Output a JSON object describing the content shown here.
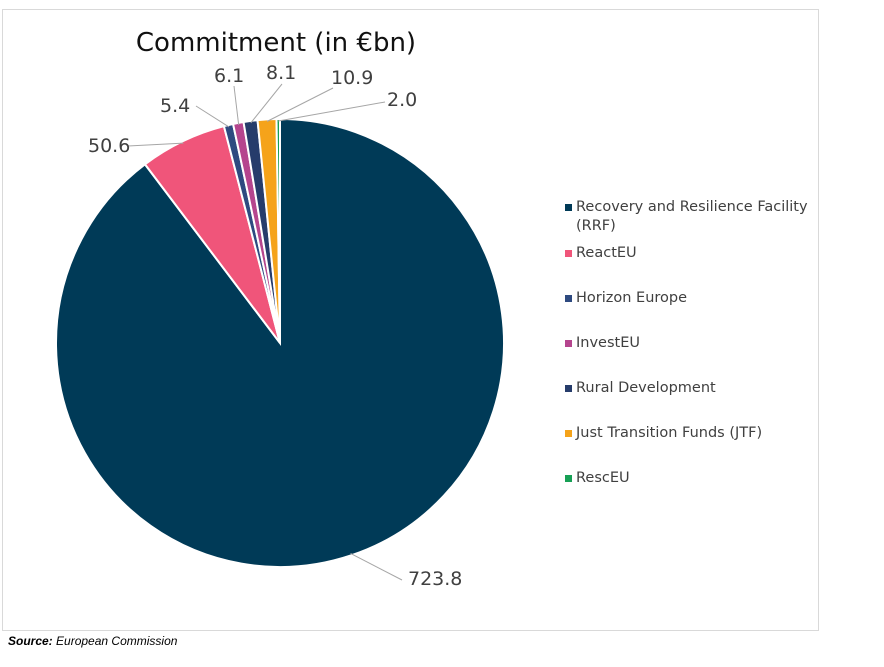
{
  "chart_data": {
    "type": "pie",
    "title": "Commitment (in €bn)",
    "slices": [
      {
        "label": "Recovery and Resilience Facility (RRF)",
        "value": 723.8,
        "value_label": "723.8",
        "color": "#003a57"
      },
      {
        "label": "ReactEU",
        "value": 50.6,
        "value_label": "50.6",
        "color": "#f0557a"
      },
      {
        "label": "Horizon Europe",
        "value": 5.4,
        "value_label": "5.4",
        "color": "#2e4a80"
      },
      {
        "label": "InvestEU",
        "value": 6.1,
        "value_label": "6.1",
        "color": "#b5458e"
      },
      {
        "label": "Rural Development",
        "value": 8.1,
        "value_label": "8.1",
        "color": "#263c6b"
      },
      {
        "label": "Just Transition Funds (JTF)",
        "value": 10.9,
        "value_label": "10.9",
        "color": "#f5a31a"
      },
      {
        "label": "RescEU",
        "value": 2.0,
        "value_label": "2.0",
        "color": "#17a055"
      }
    ],
    "legend_position": "right"
  },
  "source": {
    "prefix": "Source:",
    "text": " European Commission"
  }
}
